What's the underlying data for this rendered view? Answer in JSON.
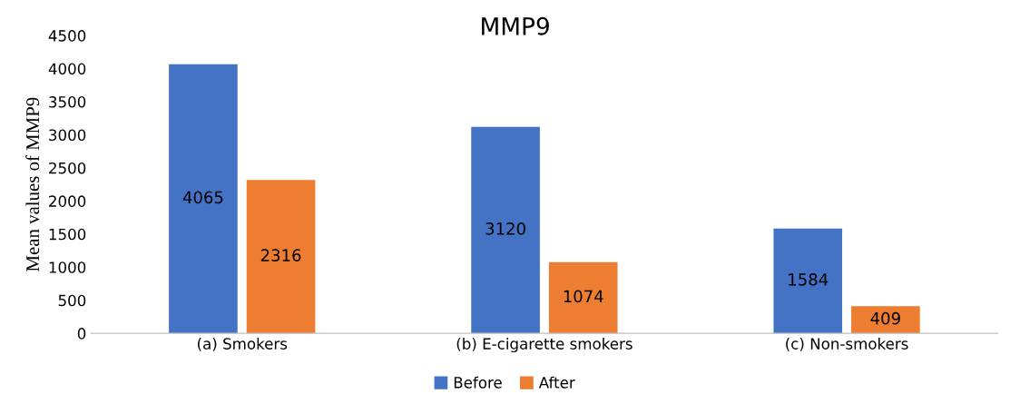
{
  "chart_data": {
    "type": "bar",
    "title": "MMP9",
    "ylabel": "Mean values of MMP9",
    "categories": [
      "(a) Smokers",
      "(b) E-cigarette smokers",
      "(c) Non-smokers"
    ],
    "series": [
      {
        "name": "Before",
        "color": "#4472c4",
        "values": [
          4065,
          3120,
          1584
        ]
      },
      {
        "name": "After",
        "color": "#ed7d31",
        "values": [
          2316,
          1074,
          409
        ]
      }
    ],
    "ylim": [
      0,
      4500
    ],
    "yticks": [
      0,
      500,
      1000,
      1500,
      2000,
      2500,
      3000,
      3500,
      4000,
      4500
    ],
    "data_labels": true,
    "grid": false,
    "legend": "bottom"
  }
}
